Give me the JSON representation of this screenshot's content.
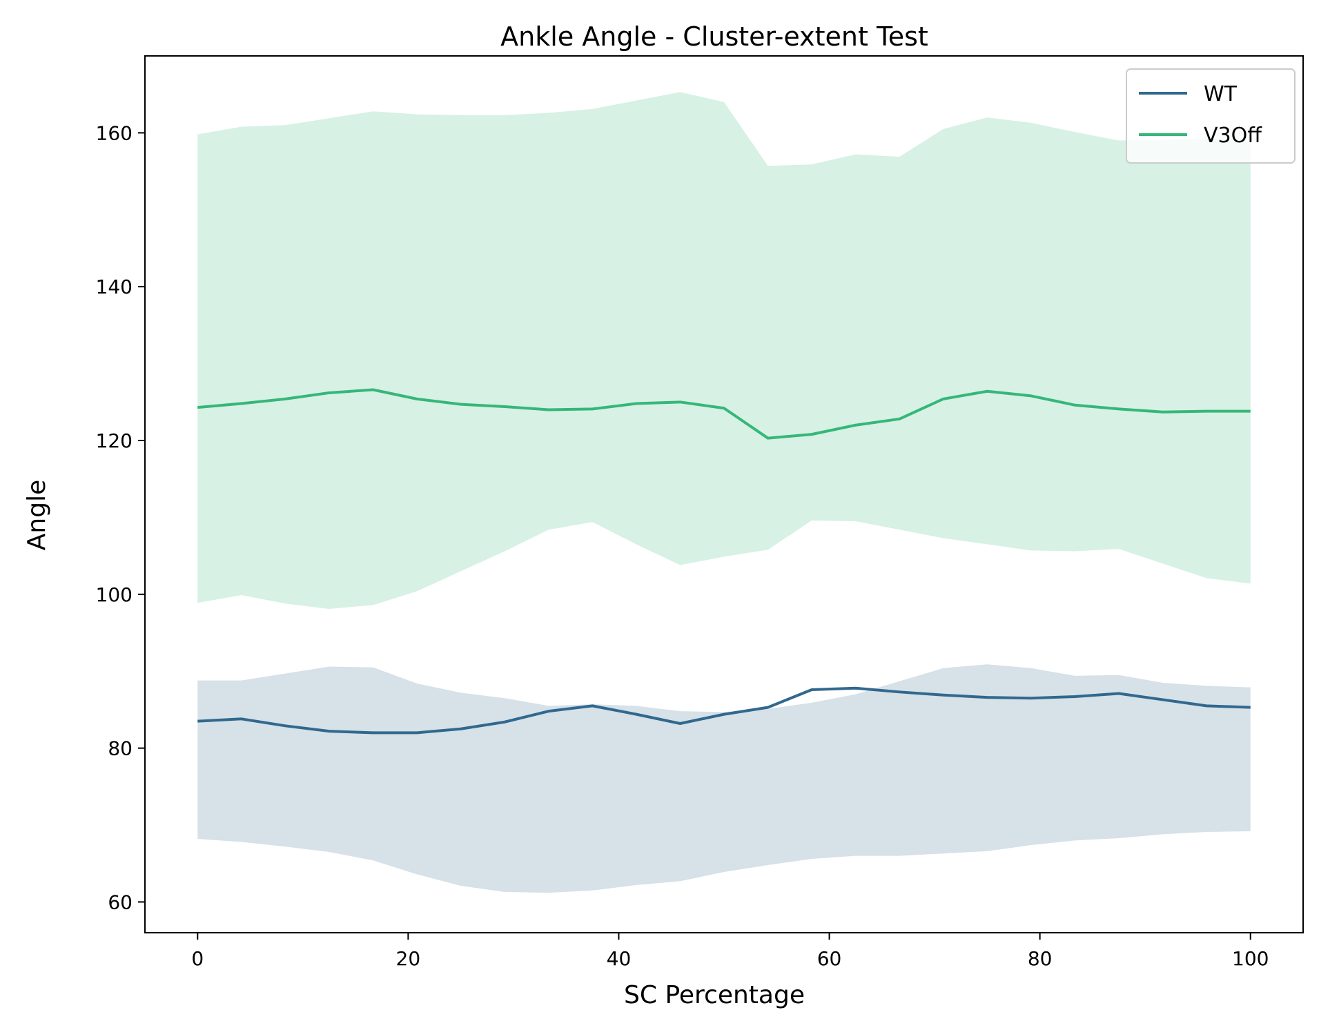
{
  "chart_data": {
    "type": "line",
    "title": "Ankle Angle - Cluster-extent Test",
    "xlabel": "SC Percentage",
    "ylabel": "Angle",
    "xlim": [
      -5,
      105
    ],
    "ylim": [
      56,
      170
    ],
    "xticks": [
      0,
      20,
      40,
      60,
      80,
      100
    ],
    "yticks": [
      60,
      80,
      100,
      120,
      140,
      160
    ],
    "grid": false,
    "legend_position": "top-right",
    "x": [
      0,
      4.17,
      8.33,
      12.5,
      16.67,
      20.83,
      25,
      29.17,
      33.33,
      37.5,
      41.67,
      45.83,
      50,
      54.17,
      58.33,
      62.5,
      66.67,
      70.83,
      75,
      79.17,
      83.33,
      87.5,
      91.67,
      95.83,
      100
    ],
    "series": [
      {
        "name": "WT",
        "color": "#31688e",
        "band_color": "#31688e",
        "values": [
          83.5,
          83.8,
          82.9,
          82.2,
          82.0,
          82.0,
          82.5,
          83.4,
          84.8,
          85.5,
          84.4,
          83.2,
          84.4,
          85.3,
          87.6,
          87.8,
          87.3,
          86.9,
          86.6,
          86.5,
          86.7,
          87.1,
          86.3,
          85.5,
          85.3
        ],
        "upper": [
          88.8,
          88.8,
          89.7,
          90.6,
          90.5,
          88.4,
          87.2,
          86.5,
          85.5,
          85.7,
          85.5,
          84.8,
          84.7,
          85.1,
          85.9,
          87.0,
          88.7,
          90.4,
          90.9,
          90.4,
          89.4,
          89.5,
          88.5,
          88.1,
          87.9
        ],
        "lower": [
          68.2,
          67.8,
          67.2,
          66.5,
          65.4,
          63.6,
          62.1,
          61.3,
          61.2,
          61.5,
          62.2,
          62.7,
          63.9,
          64.8,
          65.6,
          66.0,
          66.0,
          66.3,
          66.6,
          67.4,
          68.0,
          68.3,
          68.8,
          69.1,
          69.2
        ]
      },
      {
        "name": "V3Off",
        "color": "#35b779",
        "band_color": "#35b779",
        "values": [
          124.3,
          124.8,
          125.4,
          126.2,
          126.6,
          125.4,
          124.7,
          124.4,
          124.0,
          124.1,
          124.8,
          125.0,
          124.2,
          120.3,
          120.8,
          122.0,
          122.8,
          125.4,
          126.4,
          125.8,
          124.6,
          124.1,
          123.7,
          123.8,
          123.8
        ],
        "upper": [
          159.8,
          160.8,
          161.0,
          161.9,
          162.8,
          162.4,
          162.3,
          162.3,
          162.6,
          163.1,
          164.2,
          165.3,
          164.0,
          155.7,
          155.9,
          157.2,
          156.9,
          160.5,
          162.0,
          161.3,
          160.1,
          159.0,
          159.1,
          159.3,
          159.0
        ],
        "lower": [
          98.9,
          99.9,
          98.8,
          98.1,
          98.6,
          100.4,
          103.0,
          105.6,
          108.4,
          109.4,
          106.5,
          103.8,
          104.9,
          105.8,
          109.6,
          109.5,
          108.4,
          107.3,
          106.5,
          105.7,
          105.6,
          105.9,
          104.0,
          102.1,
          101.4
        ]
      }
    ]
  }
}
